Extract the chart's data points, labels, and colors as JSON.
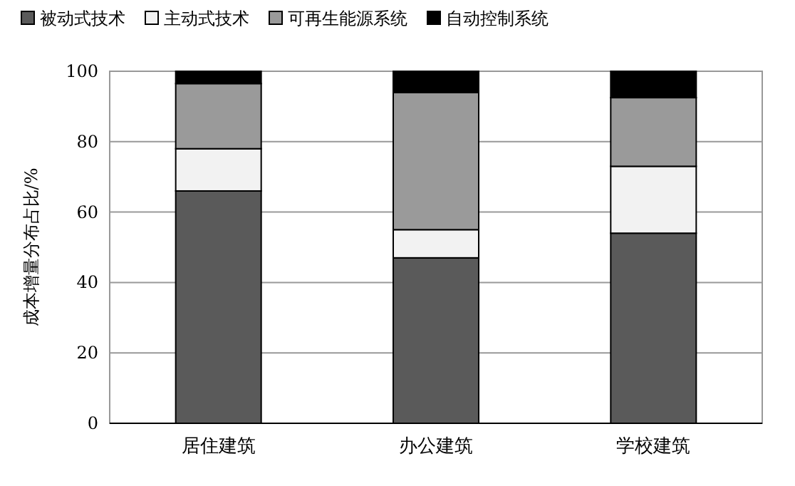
{
  "chart_data": {
    "type": "bar",
    "stacked": true,
    "ylabel": "成本增量分布占比/%",
    "categories": [
      "居住建筑",
      "办公建筑",
      "学校建筑"
    ],
    "series": [
      {
        "name": "被动式技术",
        "color": "#5a5a5a",
        "values": [
          66,
          47,
          54
        ]
      },
      {
        "name": "主动式技术",
        "color": "#f2f2f2",
        "values": [
          12,
          8,
          19
        ]
      },
      {
        "name": "可再生能源系统",
        "color": "#9a9a9a",
        "values": [
          18.5,
          39,
          19.5
        ]
      },
      {
        "name": "自动控制系统",
        "color": "#000000",
        "values": [
          3.5,
          6,
          7.5
        ]
      }
    ],
    "ylim": [
      0,
      100
    ],
    "yticks": [
      0,
      20,
      40,
      60,
      80,
      100
    ],
    "grid": "y",
    "legend": "top"
  }
}
